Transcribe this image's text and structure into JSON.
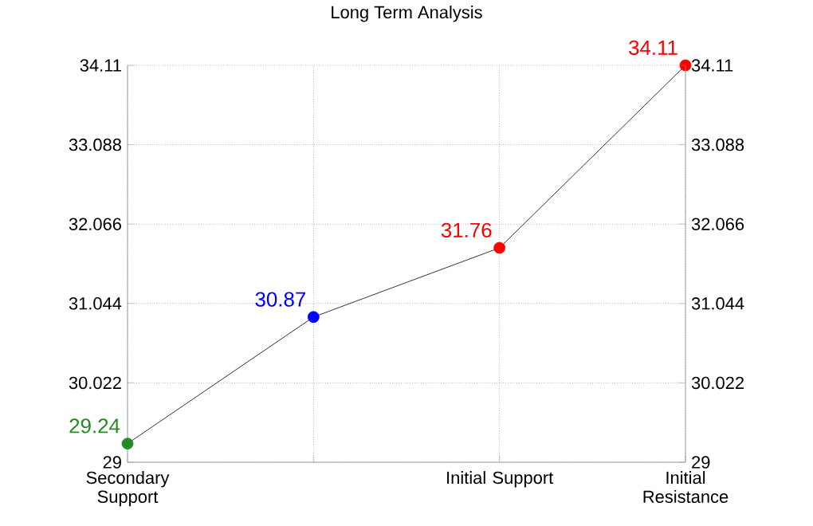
{
  "chart_data": {
    "type": "line",
    "title": "Long Term Analysis",
    "categories": [
      "Secondary Support",
      null,
      "Initial Support",
      "Initial Resistance"
    ],
    "series": [
      {
        "color": "#000000",
        "values": [
          29.24,
          30.87,
          31.76,
          34.11
        ],
        "colors": [
          "#228b22",
          "#0000ff",
          "#ff0000",
          "#ff0000"
        ]
      }
    ],
    "ylim": [
      29,
      34.11
    ],
    "yticks": [
      29,
      30.022,
      31.044,
      32.066,
      33.088,
      34.11
    ],
    "y2lim": [
      29,
      34.11
    ],
    "y2ticks": [
      29,
      30.022,
      31.044,
      32.066,
      33.088,
      34.11
    ],
    "grid": true,
    "data_labels": true,
    "marker": "circle"
  }
}
